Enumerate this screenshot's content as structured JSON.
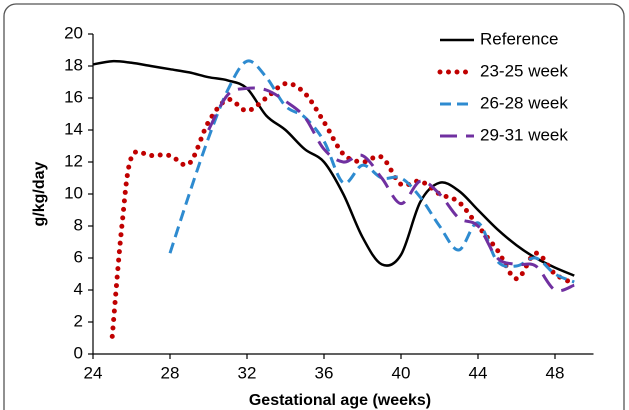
{
  "chart_data": {
    "type": "line",
    "xlabel": "Gestational age (weeks)",
    "ylabel": "g/kg/day",
    "xlim": [
      24,
      50
    ],
    "xticks": [
      24,
      28,
      32,
      36,
      40,
      44,
      48
    ],
    "ylim": [
      0,
      20
    ],
    "yticks": [
      0,
      2,
      4,
      6,
      8,
      10,
      12,
      14,
      16,
      18,
      20
    ],
    "legend": "top-right",
    "series": [
      {
        "name": "Reference",
        "color": "#000000",
        "style": "solid",
        "x": [
          24,
          25,
          26,
          27,
          28,
          29,
          30,
          31,
          32,
          33,
          34,
          35,
          36,
          37,
          38,
          39,
          40,
          41,
          42,
          43,
          44,
          45,
          46,
          47,
          48,
          49
        ],
        "values": [
          18.1,
          18.3,
          18.2,
          18.0,
          17.8,
          17.6,
          17.3,
          17.1,
          16.6,
          14.9,
          14.0,
          12.8,
          12.0,
          10.0,
          7.3,
          5.6,
          6.2,
          9.5,
          10.7,
          10.2,
          9.0,
          7.8,
          6.8,
          6.0,
          5.4,
          4.9
        ]
      },
      {
        "name": "23-25 week",
        "color": "#c00000",
        "style": "dotted",
        "x": [
          25,
          25.5,
          26,
          27,
          28,
          29,
          30,
          31,
          32,
          33,
          34,
          35,
          36,
          37,
          38,
          39,
          40,
          41,
          42,
          43,
          44,
          45,
          46,
          47,
          48,
          49
        ],
        "values": [
          1.1,
          8,
          12.3,
          12.4,
          12.4,
          11.9,
          14.5,
          15.9,
          15.2,
          16.0,
          16.9,
          16.3,
          14.5,
          12.5,
          12.0,
          12.3,
          10.6,
          10.8,
          10.0,
          9.5,
          8.0,
          6.5,
          4.7,
          6.3,
          5.0,
          4.4
        ]
      },
      {
        "name": "26-28 week",
        "color": "#2e8bd0",
        "style": "dashed",
        "x": [
          28,
          29,
          30,
          31,
          32,
          33,
          34,
          35,
          36,
          37,
          38,
          39,
          40,
          41,
          42,
          43,
          44,
          45,
          46,
          47,
          48,
          49
        ],
        "values": [
          6.3,
          10,
          13.5,
          16.5,
          18.3,
          17.3,
          15.5,
          14.8,
          13.3,
          10.7,
          11.8,
          11.0,
          11.0,
          9.8,
          8.0,
          6.5,
          8.2,
          5.8,
          5.5,
          6.0,
          5.0,
          4.5
        ]
      },
      {
        "name": "29-31 week",
        "color": "#7030a0",
        "style": "longdash",
        "x": [
          30,
          31,
          32,
          33,
          34,
          35,
          36,
          37,
          38,
          39,
          40,
          41,
          42,
          43,
          44,
          45,
          46,
          47,
          48,
          49
        ],
        "values": [
          14.0,
          16.2,
          16.6,
          16.5,
          15.8,
          14.8,
          12.8,
          12.0,
          12.4,
          11.0,
          9.4,
          10.8,
          10.0,
          8.5,
          8.0,
          6.0,
          5.6,
          5.5,
          4.0,
          4.3
        ]
      }
    ]
  }
}
